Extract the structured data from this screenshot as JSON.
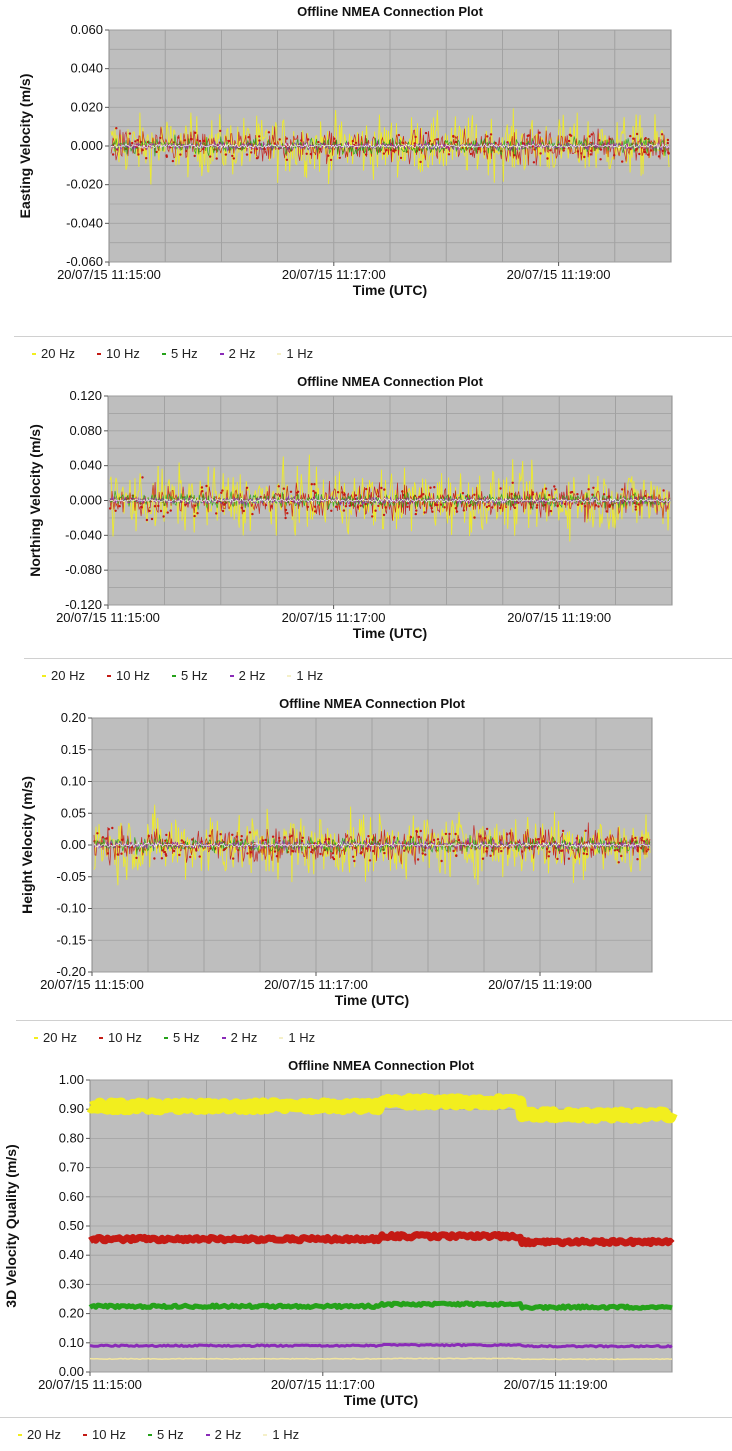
{
  "series_colors": {
    "20 Hz": "#f2ee1e",
    "10 Hz": "#c41a14",
    "5 Hz": "#25a21a",
    "2 Hz": "#8a2bb8",
    "1 Hz": "#ffffff"
  },
  "plot_bg": "#bebebe",
  "chart_data": [
    {
      "type": "scatter",
      "title": "Offline NMEA Connection Plot",
      "xlabel": "Time (UTC)",
      "ylabel": "Easting Velocity (m/s)",
      "ylim": [
        -0.06,
        0.06
      ],
      "yticks": [
        "0.060",
        "0.040",
        "0.020",
        "0.000",
        "-0.020",
        "-0.040",
        "-0.060"
      ],
      "xticks": [
        "20/07/15 11:15:00",
        "20/07/15 11:17:00",
        "20/07/15 11:19:00"
      ],
      "legend": [
        "20 Hz",
        "10 Hz",
        "5 Hz",
        "2 Hz",
        "1 Hz"
      ],
      "legend_position": "bottom",
      "grid": true,
      "series": [
        {
          "name": "20 Hz",
          "mean": 0.0,
          "spread": 0.015
        },
        {
          "name": "10 Hz",
          "mean": 0.0,
          "spread": 0.008
        },
        {
          "name": "5 Hz",
          "mean": 0.0,
          "spread": 0.004
        },
        {
          "name": "2 Hz",
          "mean": 0.0,
          "spread": 0.002
        },
        {
          "name": "1 Hz",
          "mean": 0.0,
          "spread": 0.001
        }
      ]
    },
    {
      "type": "scatter",
      "title": "Offline NMEA Connection Plot",
      "xlabel": "Time (UTC)",
      "ylabel": "Northing Velocity (m/s)",
      "ylim": [
        -0.12,
        0.12
      ],
      "yticks": [
        "0.120",
        "0.080",
        "0.040",
        "0.000",
        "-0.040",
        "-0.080",
        "-0.120"
      ],
      "xticks": [
        "20/07/15 11:15:00",
        "20/07/15 11:17:00",
        "20/07/15 11:19:00"
      ],
      "legend": [
        "20 Hz",
        "10 Hz",
        "5 Hz",
        "2 Hz",
        "1 Hz"
      ],
      "legend_position": "bottom",
      "grid": true,
      "series": [
        {
          "name": "20 Hz",
          "mean": 0.0,
          "spread": 0.035
        },
        {
          "name": "10 Hz",
          "mean": 0.0,
          "spread": 0.018
        },
        {
          "name": "5 Hz",
          "mean": 0.0,
          "spread": 0.008
        },
        {
          "name": "2 Hz",
          "mean": 0.0,
          "spread": 0.004
        },
        {
          "name": "1 Hz",
          "mean": 0.0,
          "spread": 0.002
        }
      ]
    },
    {
      "type": "scatter",
      "title": "Offline NMEA Connection Plot",
      "xlabel": "Time (UTC)",
      "ylabel": "Height Velocity (m/s)",
      "ylim": [
        -0.2,
        0.2
      ],
      "yticks": [
        "0.20",
        "0.15",
        "0.10",
        "0.05",
        "0.00",
        "-0.05",
        "-0.10",
        "-0.15",
        "-0.20"
      ],
      "xticks": [
        "20/07/15 11:15:00",
        "20/07/15 11:17:00",
        "20/07/15 11:19:00"
      ],
      "legend": [
        "20 Hz",
        "10 Hz",
        "5 Hz",
        "2 Hz",
        "1 Hz"
      ],
      "legend_position": "bottom",
      "grid": true,
      "series": [
        {
          "name": "20 Hz",
          "mean": 0.0,
          "spread": 0.05
        },
        {
          "name": "10 Hz",
          "mean": 0.0,
          "spread": 0.025
        },
        {
          "name": "5 Hz",
          "mean": 0.0,
          "spread": 0.012
        },
        {
          "name": "2 Hz",
          "mean": 0.0,
          "spread": 0.006
        },
        {
          "name": "1 Hz",
          "mean": 0.0,
          "spread": 0.003
        }
      ]
    },
    {
      "type": "line",
      "title": "Offline NMEA Connection Plot",
      "xlabel": "Time (UTC)",
      "ylabel": "3D Velocity Quality (m/s)",
      "ylim": [
        0.0,
        1.0
      ],
      "yticks": [
        "1.00",
        "0.90",
        "0.80",
        "0.70",
        "0.60",
        "0.50",
        "0.40",
        "0.30",
        "0.20",
        "0.10",
        "0.00"
      ],
      "xticks": [
        "20/07/15 11:15:00",
        "20/07/15 11:17:00",
        "20/07/15 11:19:00"
      ],
      "legend": [
        "20 Hz",
        "10 Hz",
        "5 Hz",
        "2 Hz",
        "1 Hz"
      ],
      "legend_position": "bottom",
      "grid": true,
      "series": [
        {
          "name": "20 Hz",
          "x": [
            0,
            0.5,
            0.5,
            0.74,
            0.74,
            1
          ],
          "values": [
            0.91,
            0.91,
            0.925,
            0.925,
            0.88,
            0.88
          ]
        },
        {
          "name": "10 Hz",
          "x": [
            0,
            0.5,
            0.5,
            0.74,
            0.74,
            1
          ],
          "values": [
            0.455,
            0.455,
            0.465,
            0.465,
            0.445,
            0.445
          ]
        },
        {
          "name": "5 Hz",
          "x": [
            0,
            0.5,
            0.5,
            0.74,
            0.74,
            1
          ],
          "values": [
            0.225,
            0.225,
            0.232,
            0.232,
            0.222,
            0.222
          ]
        },
        {
          "name": "2 Hz",
          "x": [
            0,
            0.5,
            0.5,
            0.74,
            0.74,
            1
          ],
          "values": [
            0.09,
            0.09,
            0.092,
            0.092,
            0.088,
            0.088
          ]
        },
        {
          "name": "1 Hz",
          "x": [
            0,
            0.5,
            0.5,
            0.74,
            0.74,
            1
          ],
          "values": [
            0.045,
            0.045,
            0.046,
            0.046,
            0.044,
            0.044
          ]
        }
      ]
    }
  ]
}
